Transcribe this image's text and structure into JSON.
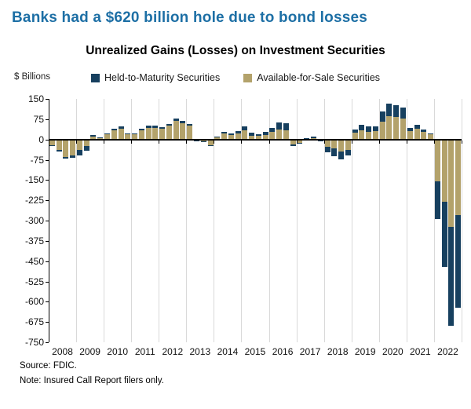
{
  "header": {
    "headline": "Banks had a $620 billion hole due to bond losses",
    "headline_color": "#1d6fa5"
  },
  "footer": {
    "source_line": "Source: FDIC.",
    "note_line": "Note: Insured Call Report filers only."
  },
  "chart_data": {
    "type": "bar",
    "stacked": true,
    "title": "Unrealized Gains (Losses) on Investment Securities",
    "ylabel": "$ Billions",
    "ylim": [
      -750,
      150
    ],
    "ytick_step": 75,
    "yticks": [
      150,
      75,
      0,
      -75,
      -150,
      -225,
      -300,
      -375,
      -450,
      -525,
      -600,
      -675,
      -750
    ],
    "grid": "vertical-year-boundaries",
    "legend_position": "top-center",
    "years": [
      2008,
      2009,
      2010,
      2011,
      2012,
      2013,
      2014,
      2015,
      2016,
      2017,
      2018,
      2019,
      2020,
      2021,
      2022
    ],
    "quarters_per_year": 4,
    "stack_note": "Available-for-Sale segment drawn from zero baseline, Held-to-Maturity stacked beyond it; values in $ billions per quarter 2008Q1-2022Q4",
    "series": [
      {
        "name": "Held-to-Maturity Securities",
        "color": "#17405f",
        "values": [
          -3,
          -5,
          -6,
          -9,
          -20,
          -18,
          4,
          2,
          3,
          8,
          8,
          3,
          3,
          5,
          6,
          6,
          5,
          6,
          8,
          7,
          8,
          -1,
          -2,
          -5,
          2,
          6,
          5,
          10,
          16,
          10,
          6,
          10,
          14,
          26,
          25,
          -6,
          -3,
          2,
          4,
          -2,
          -20,
          -30,
          -31,
          -21,
          13,
          22,
          20,
          15,
          36,
          46,
          43,
          41,
          12,
          15,
          9,
          4,
          -139,
          -241,
          -368,
          -341
        ]
      },
      {
        "name": "Available-for-Sale Securities",
        "color": "#b3a26b",
        "values": [
          -20,
          -40,
          -65,
          -58,
          -38,
          -25,
          12,
          6,
          18,
          33,
          39,
          20,
          20,
          34,
          44,
          44,
          41,
          52,
          69,
          61,
          50,
          -5,
          -6,
          -20,
          8,
          22,
          16,
          22,
          33,
          14,
          14,
          17,
          28,
          38,
          34,
          -17,
          -12,
          3,
          6,
          -4,
          -27,
          -32,
          -44,
          -38,
          25,
          33,
          28,
          32,
          67,
          86,
          83,
          78,
          32,
          39,
          28,
          18,
          -154,
          -230,
          -322,
          -280
        ]
      }
    ],
    "colors": {
      "gridline": "#d9d9d9",
      "axis": "#000000"
    }
  }
}
